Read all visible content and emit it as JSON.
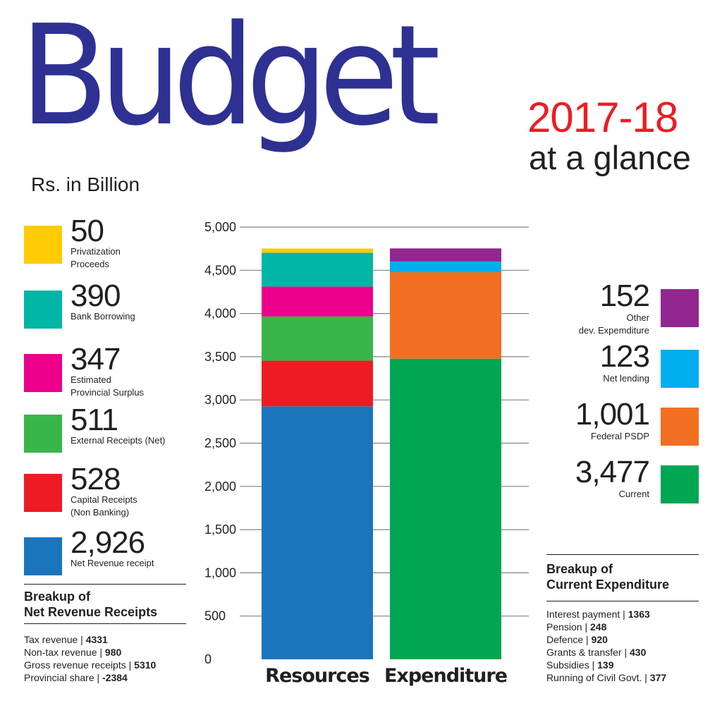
{
  "header": {
    "title": "Budget",
    "year": "2017-18",
    "subtitle": "at a glance",
    "units": "Rs. in Billion"
  },
  "colors": {
    "title": "#2e3192",
    "year": "#ed1c24",
    "grid": "#808285"
  },
  "resources_legend": [
    {
      "value": "50",
      "label": "Privatization\nProceeds",
      "color": "#ffcb05"
    },
    {
      "value": "390",
      "label": "Bank Borrowing",
      "color": "#00b6a6"
    },
    {
      "value": "347",
      "label": "Estimated\nProvincial Surplus",
      "color": "#ec008c"
    },
    {
      "value": "511",
      "label": "External Receipts (Net)",
      "color": "#39b54a"
    },
    {
      "value": "528",
      "label": "Capital Receipts\n(Non Banking)",
      "color": "#ed1c24"
    },
    {
      "value": "2,926",
      "label": "Net Revenue receipt",
      "color": "#1b75bc"
    }
  ],
  "expenditure_legend": [
    {
      "value": "152",
      "label": "Other\ndev. Expemditure",
      "color": "#92278f"
    },
    {
      "value": "123",
      "label": "Net lending",
      "color": "#00aeef"
    },
    {
      "value": "1,001",
      "label": "Federal PSDP",
      "color": "#f26f21"
    },
    {
      "value": "3,477",
      "label": "Current",
      "color": "#00a651"
    }
  ],
  "net_revenue_breakup": {
    "heading": "Breakup of\nNet Revenue Receipts",
    "items": [
      {
        "label": "Tax revenue | ",
        "value": "4331"
      },
      {
        "label": "Non-tax revenue | ",
        "value": "980"
      },
      {
        "label": "Gross revenue receipts | ",
        "value": "5310"
      },
      {
        "label": "Provincial share | ",
        "value": "-2384"
      }
    ]
  },
  "current_expenditure_breakup": {
    "heading": "Breakup of\nCurrent Expenditure",
    "items": [
      {
        "label": "Interest payment | ",
        "value": "1363"
      },
      {
        "label": "Pension | ",
        "value": "248"
      },
      {
        "label": "Defence | ",
        "value": "920"
      },
      {
        "label": "Grants & transfer | ",
        "value": "430"
      },
      {
        "label": "Subsidies | ",
        "value": "139"
      },
      {
        "label": "Running of Civil Govt. | ",
        "value": "377"
      }
    ]
  },
  "chart_data": {
    "type": "bar",
    "stacked": true,
    "categories": [
      "Resources",
      "Expenditure"
    ],
    "ylim": [
      0,
      5000
    ],
    "yticks": [
      "0",
      "500",
      "1,000",
      "1,500",
      "2,000",
      "2,500",
      "3,000",
      "3,500",
      "4,000",
      "4,500",
      "5,000"
    ],
    "ytick_values": [
      0,
      500,
      1000,
      1500,
      2000,
      2500,
      3000,
      3500,
      4000,
      4500,
      5000
    ],
    "stacks": [
      {
        "category": "Resources",
        "segments": [
          {
            "name": "Net Revenue receipt",
            "value": 2926,
            "color": "#1b75bc"
          },
          {
            "name": "Capital Receipts (Non Banking)",
            "value": 528,
            "color": "#ed1c24"
          },
          {
            "name": "External Receipts (Net)",
            "value": 511,
            "color": "#39b54a"
          },
          {
            "name": "Estimated Provincial Surplus",
            "value": 347,
            "color": "#ec008c"
          },
          {
            "name": "Bank Borrowing",
            "value": 390,
            "color": "#00b6a6"
          },
          {
            "name": "Privatization Proceeds",
            "value": 50,
            "color": "#ffcb05"
          }
        ]
      },
      {
        "category": "Expenditure",
        "segments": [
          {
            "name": "Current",
            "value": 3477,
            "color": "#00a651"
          },
          {
            "name": "Federal PSDP",
            "value": 1001,
            "color": "#f26f21"
          },
          {
            "name": "Net lending",
            "value": 123,
            "color": "#00aeef"
          },
          {
            "name": "Other dev. Expemditure",
            "value": 152,
            "color": "#92278f"
          }
        ]
      }
    ]
  }
}
